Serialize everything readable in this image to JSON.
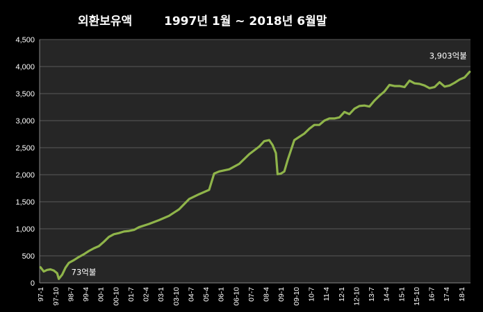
{
  "chart_data": {
    "type": "line",
    "title": "외환보유액",
    "subtitle": "1997년 1월 ~ 2018년 6월말",
    "ylim": [
      0,
      4500
    ],
    "yticks": [
      "0",
      "500",
      "1,000",
      "1,500",
      "2,000",
      "2,500",
      "3,000",
      "3,500",
      "4,000",
      "4,500"
    ],
    "xticks": [
      "97-1",
      "97-10",
      "98-7",
      "99-4",
      "00-1",
      "00-10",
      "01-7",
      "02-4",
      "03-1",
      "03-10",
      "04-7",
      "05-4",
      "06-1",
      "06-10",
      "07-7",
      "08-4",
      "09-1",
      "09-10",
      "10-7",
      "11-4",
      "12-1",
      "12-10",
      "13-7",
      "14-4",
      "15-1",
      "15-10",
      "16-7",
      "17-4",
      "18-1"
    ],
    "grid": true,
    "legend": "none",
    "line_color": "#8fb44a",
    "annotations": [
      {
        "text": "73억불",
        "x": "97-12",
        "y": 73
      },
      {
        "text": "3,903억불",
        "x": "18-6",
        "y": 3903
      }
    ],
    "series": [
      {
        "points": [
          [
            "97-1",
            290
          ],
          [
            "97-3",
            210
          ],
          [
            "97-5",
            240
          ],
          [
            "97-7",
            250
          ],
          [
            "97-9",
            230
          ],
          [
            "97-11",
            180
          ],
          [
            "97-12",
            73
          ],
          [
            "98-2",
            150
          ],
          [
            "98-4",
            280
          ],
          [
            "98-6",
            370
          ],
          [
            "98-9",
            420
          ],
          [
            "98-12",
            480
          ],
          [
            "99-3",
            530
          ],
          [
            "99-6",
            590
          ],
          [
            "99-9",
            640
          ],
          [
            "99-12",
            680
          ],
          [
            "00-3",
            760
          ],
          [
            "00-6",
            850
          ],
          [
            "00-9",
            900
          ],
          [
            "00-12",
            920
          ],
          [
            "01-3",
            950
          ],
          [
            "01-6",
            960
          ],
          [
            "01-9",
            980
          ],
          [
            "01-12",
            1030
          ],
          [
            "02-6",
            1090
          ],
          [
            "02-12",
            1160
          ],
          [
            "03-6",
            1240
          ],
          [
            "03-12",
            1360
          ],
          [
            "04-6",
            1550
          ],
          [
            "04-12",
            1640
          ],
          [
            "05-6",
            1720
          ],
          [
            "05-9",
            2020
          ],
          [
            "05-12",
            2060
          ],
          [
            "06-6",
            2100
          ],
          [
            "06-12",
            2200
          ],
          [
            "07-6",
            2380
          ],
          [
            "07-12",
            2520
          ],
          [
            "08-3",
            2620
          ],
          [
            "08-6",
            2640
          ],
          [
            "08-8",
            2550
          ],
          [
            "08-10",
            2400
          ],
          [
            "08-11",
            2010
          ],
          [
            "09-1",
            2020
          ],
          [
            "09-3",
            2060
          ],
          [
            "09-5",
            2270
          ],
          [
            "09-9",
            2640
          ],
          [
            "09-12",
            2700
          ],
          [
            "10-3",
            2760
          ],
          [
            "10-6",
            2850
          ],
          [
            "10-9",
            2920
          ],
          [
            "10-12",
            2920
          ],
          [
            "11-3",
            3000
          ],
          [
            "11-6",
            3040
          ],
          [
            "11-9",
            3040
          ],
          [
            "11-12",
            3060
          ],
          [
            "12-3",
            3160
          ],
          [
            "12-6",
            3120
          ],
          [
            "12-9",
            3220
          ],
          [
            "12-12",
            3270
          ],
          [
            "13-3",
            3280
          ],
          [
            "13-6",
            3260
          ],
          [
            "13-9",
            3370
          ],
          [
            "13-12",
            3460
          ],
          [
            "14-3",
            3540
          ],
          [
            "14-6",
            3660
          ],
          [
            "14-9",
            3640
          ],
          [
            "14-12",
            3640
          ],
          [
            "15-3",
            3620
          ],
          [
            "15-6",
            3740
          ],
          [
            "15-9",
            3690
          ],
          [
            "15-12",
            3680
          ],
          [
            "16-3",
            3650
          ],
          [
            "16-6",
            3600
          ],
          [
            "16-9",
            3620
          ],
          [
            "16-12",
            3710
          ],
          [
            "17-3",
            3630
          ],
          [
            "17-6",
            3650
          ],
          [
            "17-9",
            3700
          ],
          [
            "17-12",
            3760
          ],
          [
            "18-3",
            3800
          ],
          [
            "18-6",
            3903
          ]
        ]
      }
    ]
  }
}
